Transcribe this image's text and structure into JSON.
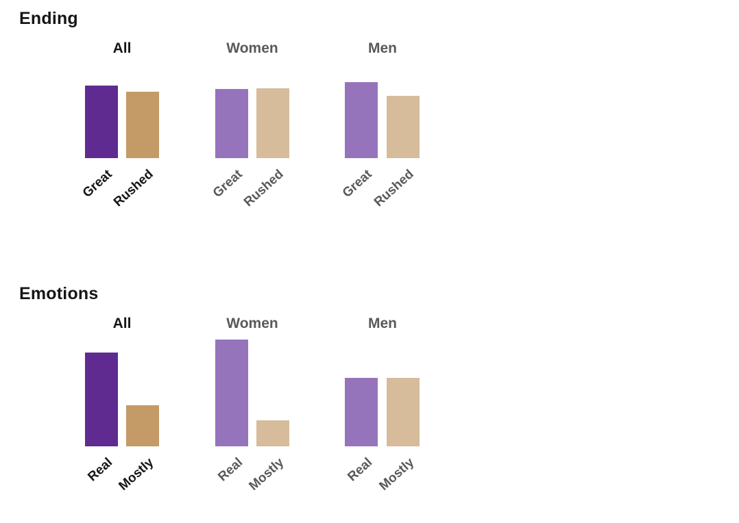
{
  "page": {
    "background": "#ffffff"
  },
  "colors": {
    "all_primary": "#5f2b91",
    "all_secondary": "#c49a66",
    "gender_primary": "#9674bc",
    "gender_secondary": "#d6bc9b",
    "text_black": "#161616",
    "text_gray": "#58595b"
  },
  "chart_data": [
    {
      "type": "bar",
      "title": "Ending",
      "groups": [
        "All",
        "Women",
        "Men"
      ],
      "categories": [
        "Great",
        "Rushed"
      ],
      "series": [
        {
          "name": "All",
          "values": [
            106,
            97
          ]
        },
        {
          "name": "Women",
          "values": [
            101,
            102
          ]
        },
        {
          "name": "Men",
          "values": [
            111,
            91
          ]
        }
      ],
      "unit": "px",
      "xlabel": "",
      "ylabel": "",
      "grid": false,
      "legend": "none",
      "value_axis": "none"
    },
    {
      "type": "bar",
      "title": "Emotions",
      "groups": [
        "All",
        "Women",
        "Men"
      ],
      "categories": [
        "Real",
        "Mostly"
      ],
      "series": [
        {
          "name": "All",
          "values": [
            137,
            60
          ]
        },
        {
          "name": "Women",
          "values": [
            156,
            38
          ]
        },
        {
          "name": "Men",
          "values": [
            100,
            100
          ]
        }
      ],
      "unit": "px",
      "xlabel": "",
      "ylabel": "",
      "grid": false,
      "legend": "none",
      "value_axis": "none"
    }
  ]
}
